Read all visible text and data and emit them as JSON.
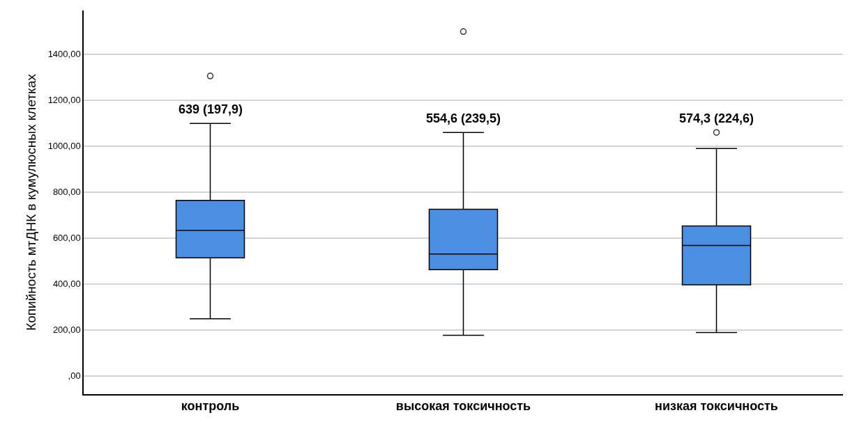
{
  "chart_data": {
    "type": "box",
    "ylabel": "Копийность мтДНК в кумулюсных клетках",
    "categories": [
      "контроль",
      "высокая токсичность",
      "низкая токсичность"
    ],
    "boxes": [
      {
        "low": 248,
        "q1": 513,
        "median": 633,
        "q3": 763,
        "high": 1098,
        "outliers": [
          1305
        ]
      },
      {
        "low": 176,
        "q1": 462,
        "median": 530,
        "q3": 725,
        "high": 1059,
        "outliers": [
          1498
        ]
      },
      {
        "low": 188,
        "q1": 396,
        "median": 567,
        "q3": 652,
        "high": 989,
        "outliers": [
          1059
        ]
      }
    ],
    "color": "#4a8fe2",
    "ylim": [
      -80,
      1590
    ],
    "yticks": [
      {
        "value": 0,
        "label": ",00"
      },
      {
        "value": 200,
        "label": "200,00"
      },
      {
        "value": 400,
        "label": "400,00"
      },
      {
        "value": 600,
        "label": "600,00"
      },
      {
        "value": 800,
        "label": "800,00"
      },
      {
        "value": 1000,
        "label": "1000,00"
      },
      {
        "value": 1200,
        "label": "1200,00"
      },
      {
        "value": 1400,
        "label": "1400,00"
      }
    ],
    "grid": "y",
    "annotations": [
      "639 (197,9)",
      "554,6 (239,5)",
      "574,3 (224,6)"
    ]
  }
}
